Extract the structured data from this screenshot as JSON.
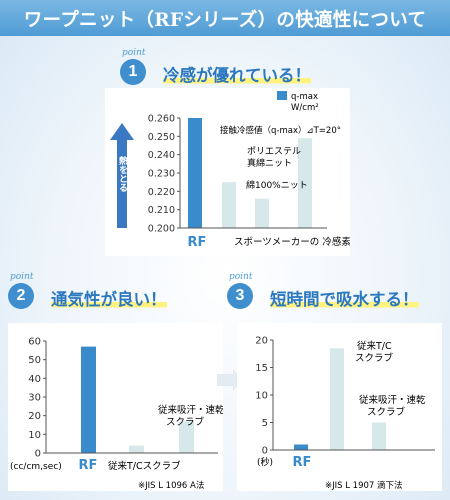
{
  "header": {
    "title": "ワープニット（RFシリーズ）の快適性について"
  },
  "point_word": "point",
  "section1": {
    "number": "1",
    "title": "冷感が優れている！",
    "legend": {
      "line1": "q-max",
      "line2": "W/cm²"
    },
    "arrow_label": "熱をとる",
    "annotations": {
      "cond": "接触冷感値（q-max）⊿T=20°",
      "polyester": "ポリエステル\n真綿ニット",
      "cotton": "綿100%ニット",
      "sports": "スポーツメーカーの 冷感素材"
    }
  },
  "section2": {
    "number": "2",
    "title": "通気性が良い！",
    "annotations": {
      "comp2": "従来吸汗・速乾\nスクラブ"
    },
    "footnote": "※JIS  L 1096  A法"
  },
  "section3": {
    "number": "3",
    "title": "短時間で吸水する！",
    "annotations": {
      "comp1": "従来T/C\nスクラブ",
      "comp2": "従来吸汗・速乾\nスクラブ"
    },
    "footnote": "※JIS L 1907 滴下法"
  },
  "colors": {
    "rf_bar": "#3a8bcb",
    "other_bar": "#d6e8ea",
    "accent": "#2b78bf",
    "header": "#5aa3d8"
  },
  "chart_data": [
    {
      "id": "cooling",
      "type": "bar",
      "categories": [
        "RF",
        "",
        "",
        ""
      ],
      "values": [
        0.26,
        0.225,
        0.216,
        0.249
      ],
      "ylim": [
        0.2,
        0.26
      ],
      "yticks": [
        "0.200",
        "0.210",
        "0.220",
        "0.230",
        "0.240",
        "0.250",
        "0.260"
      ],
      "ylabel": "",
      "legend": "q-max W/cm²"
    },
    {
      "id": "breathability",
      "type": "bar",
      "categories": [
        "RF",
        "従来T/Cスクラブ",
        ""
      ],
      "values": [
        57,
        4,
        17
      ],
      "ylim": [
        0,
        60
      ],
      "yticks": [
        "0",
        "10",
        "20",
        "30",
        "40",
        "50",
        "60"
      ],
      "ylabel": "(cc/cm,sec)"
    },
    {
      "id": "absorption",
      "type": "bar",
      "categories": [
        "RF",
        "",
        ""
      ],
      "values": [
        1,
        18.5,
        5
      ],
      "ylim": [
        0,
        20
      ],
      "yticks": [
        "0",
        "5",
        "10",
        "15",
        "20"
      ],
      "ylabel": "(秒)"
    }
  ]
}
